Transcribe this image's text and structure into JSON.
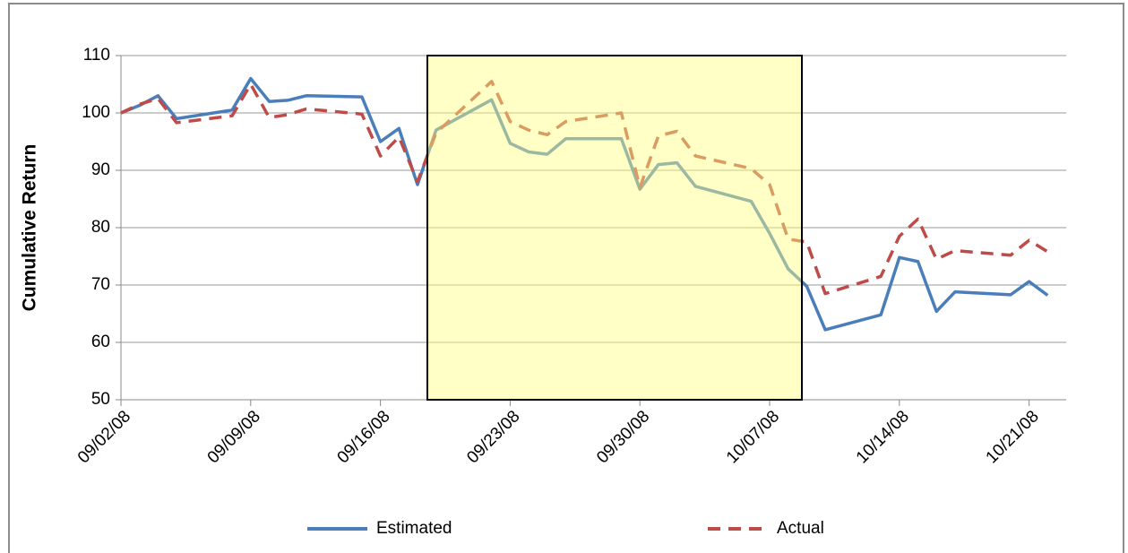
{
  "chart_data": {
    "type": "line",
    "y_label": "Cumulative Return",
    "x": [
      "09/02/08",
      "09/03/08",
      "09/04/08",
      "09/05/08",
      "09/08/08",
      "09/09/08",
      "09/10/08",
      "09/11/08",
      "09/12/08",
      "09/15/08",
      "09/16/08",
      "09/17/08",
      "09/18/08",
      "09/19/08",
      "09/22/08",
      "09/23/08",
      "09/24/08",
      "09/25/08",
      "09/26/08",
      "09/29/08",
      "09/30/08",
      "10/01/08",
      "10/02/08",
      "10/03/08",
      "10/06/08",
      "10/07/08",
      "10/08/08",
      "10/09/08",
      "10/10/08",
      "10/13/08",
      "10/14/08",
      "10/15/08",
      "10/16/08",
      "10/17/08",
      "10/20/08",
      "10/21/08",
      "10/22/08"
    ],
    "series": [
      {
        "name": "Estimated",
        "color": "#4a7ebb",
        "dashed": false,
        "values": [
          100,
          101.3,
          103,
          99,
          100.5,
          106,
          102,
          102.2,
          103,
          102.8,
          95,
          97.3,
          87.5,
          97,
          102.3,
          94.7,
          93.2,
          92.8,
          95.5,
          95.5,
          86.7,
          91,
          91.3,
          87.2,
          84.6,
          79,
          72.8,
          69.8,
          62.2,
          64.8,
          74.8,
          74.1,
          65.4,
          68.8,
          68.3,
          70.6,
          68.2
        ]
      },
      {
        "name": "Actual",
        "color": "#be4b48",
        "dashed": true,
        "values": [
          100,
          101.5,
          102.5,
          98.3,
          99.5,
          105,
          99.2,
          99.7,
          100.7,
          99.8,
          92.5,
          95.8,
          88,
          96.5,
          105.5,
          98.5,
          97,
          96.2,
          98.5,
          100,
          87,
          96,
          96.8,
          92.5,
          90.3,
          87.5,
          78,
          77.5,
          68.5,
          71.5,
          78.5,
          81.5,
          74.5,
          76,
          75.2,
          77.8,
          75.8
        ]
      }
    ],
    "xlim": [
      "09/02/08",
      "10/23/08"
    ],
    "xticks": [
      "09/02/08",
      "09/09/08",
      "09/16/08",
      "09/23/08",
      "09/30/08",
      "10/07/08",
      "10/14/08",
      "10/21/08"
    ],
    "ylim": [
      50,
      110
    ],
    "yticks": [
      50,
      60,
      70,
      80,
      90,
      100,
      110
    ],
    "grid": true,
    "legend": "bottom"
  }
}
